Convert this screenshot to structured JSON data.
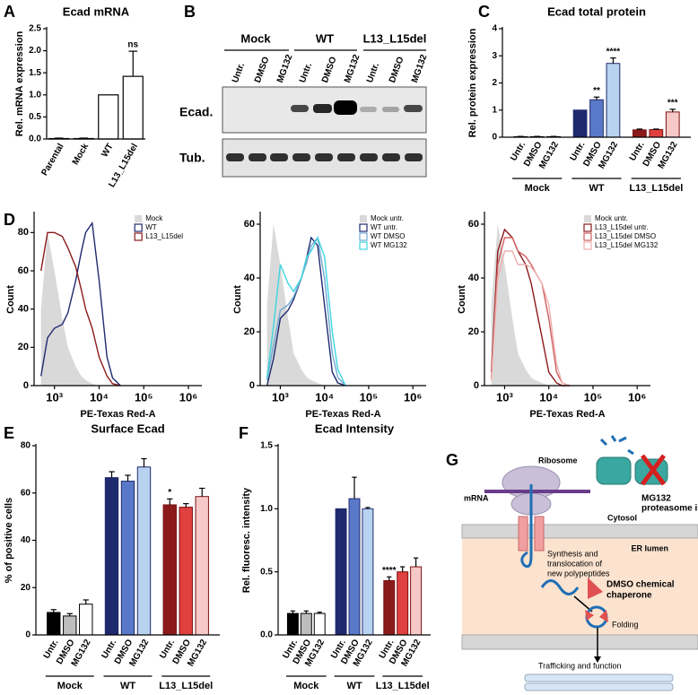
{
  "panel_letters": [
    "A",
    "B",
    "C",
    "D",
    "E",
    "F",
    "G"
  ],
  "chart_data": [
    {
      "type": "bar",
      "title": "Ecad mRNA",
      "ylabel": "Rel. mRNA expression",
      "categories": [
        "Parental",
        "Mock",
        "WT",
        "L13_L15del"
      ],
      "values": [
        0.01,
        0.01,
        1.0,
        1.42
      ],
      "errors": [
        0.01,
        0.01,
        0,
        0.57
      ],
      "significance": [
        null,
        null,
        null,
        "ns"
      ],
      "color": "#ffffff",
      "edgecolor": "#000000",
      "ylim": [
        0,
        2.5
      ],
      "yticks": [
        {
          "value": 0,
          "label": "0.0"
        },
        {
          "value": 0.5,
          "label": "0.5"
        },
        {
          "value": 1,
          "label": "1.0"
        },
        {
          "value": 1.5,
          "label": "1.5"
        },
        {
          "value": 2,
          "label": "2.0"
        },
        {
          "value": 2.5,
          "label": "2.5"
        }
      ]
    },
    {
      "type": "grouped_bar",
      "title": "Ecad total protein",
      "ylabel": "Rel. protein expression",
      "categories": [
        "Untr.",
        "DMSO",
        "MG132"
      ],
      "series": [
        {
          "name": "Mock",
          "colors": [
            "#000000",
            "#bdbdbd",
            "#ffffff"
          ],
          "edgecolor": "#000000",
          "values": [
            0.02,
            0.02,
            0.02
          ],
          "errors": [
            0.01,
            0.01,
            0.01
          ]
        },
        {
          "name": "WT",
          "colors": [
            "#1f2a6e",
            "#5a78c8",
            "#b7d3f0"
          ],
          "edgecolor": "#1f2a6e",
          "values": [
            1.0,
            1.38,
            2.72
          ],
          "errors": [
            0,
            0.1,
            0.2
          ],
          "significance": [
            null,
            "**",
            "****"
          ]
        },
        {
          "name": "L13_L15del",
          "colors": [
            "#8b1a1a",
            "#e04040",
            "#f7c8c8"
          ],
          "edgecolor": "#7a1010",
          "values": [
            0.27,
            0.28,
            0.93
          ],
          "errors": [
            0.03,
            0.02,
            0.1
          ],
          "significance": [
            null,
            null,
            "***"
          ]
        }
      ],
      "ylim": [
        0,
        4
      ],
      "yticks": [
        0,
        1,
        2,
        3,
        4
      ]
    },
    {
      "type": "line",
      "xscale": "log",
      "xlabel": "PE-Texas Red-A",
      "ylabel": "Count",
      "legend": "upper right",
      "x": [
        500,
        700,
        1000,
        1500,
        2000,
        3000,
        4000,
        5000,
        7000,
        10000,
        15000,
        20000,
        30000
      ],
      "series": [
        {
          "name": "Mock",
          "color": "#d9d9d9",
          "filled": true,
          "values": [
            40,
            80,
            60,
            35,
            20,
            10,
            5,
            3,
            1,
            0,
            0,
            0,
            0
          ]
        },
        {
          "name": "WT",
          "color": "#1f2a6e",
          "values": [
            5,
            25,
            30,
            32,
            38,
            55,
            70,
            80,
            85,
            55,
            15,
            4,
            0
          ]
        },
        {
          "name": "L13_L15del",
          "color": "#8b1a1a",
          "values": [
            60,
            80,
            80,
            78,
            72,
            62,
            50,
            40,
            30,
            15,
            5,
            1,
            0
          ]
        }
      ],
      "xlim": [
        350,
        2000000
      ],
      "xticks": [
        {
          "value": 1000,
          "label": "10³"
        },
        {
          "value": 10000,
          "label": "10⁴"
        },
        {
          "value": 100000,
          "label": "10⁵"
        },
        {
          "value": 1000000,
          "label": "10⁶"
        }
      ],
      "ylim": [
        0,
        90
      ],
      "yticks": [
        0,
        20,
        40,
        60,
        80
      ]
    },
    {
      "type": "line",
      "xscale": "log",
      "xlabel": "PE-Texas Red-A",
      "ylabel": "Count",
      "legend": "upper right",
      "x": [
        500,
        700,
        1000,
        1500,
        2000,
        3000,
        4000,
        5000,
        7000,
        10000,
        15000,
        20000,
        30000
      ],
      "series": [
        {
          "name": "Mock untr.",
          "color": "#d9d9d9",
          "filled": true,
          "values": [
            30,
            60,
            45,
            25,
            12,
            6,
            3,
            2,
            1,
            0,
            0,
            0,
            0
          ]
        },
        {
          "name": "WT untr.",
          "color": "#1f2a6e",
          "values": [
            0,
            10,
            25,
            28,
            32,
            40,
            48,
            55,
            52,
            30,
            5,
            1,
            0
          ]
        },
        {
          "name": "WT DMSO",
          "color": "#6fa8d0",
          "values": [
            2,
            15,
            28,
            30,
            33,
            40,
            46,
            52,
            55,
            40,
            12,
            3,
            0
          ]
        },
        {
          "name": "WT MG132",
          "color": "#3fd6e0",
          "values": [
            3,
            22,
            45,
            38,
            35,
            40,
            48,
            50,
            55,
            48,
            20,
            6,
            0
          ]
        }
      ],
      "xlim": [
        350,
        2000000
      ],
      "xticks": [
        {
          "value": 1000,
          "label": "10³"
        },
        {
          "value": 10000,
          "label": "10⁴"
        },
        {
          "value": 100000,
          "label": "10⁵"
        },
        {
          "value": 1000000,
          "label": "10⁶"
        }
      ],
      "ylim": [
        0,
        64
      ],
      "yticks": [
        0,
        20,
        40,
        60
      ]
    },
    {
      "type": "line",
      "xscale": "log",
      "xlabel": "PE-Texas Red-A",
      "ylabel": "Count",
      "legend": "upper right",
      "x": [
        500,
        700,
        1000,
        1500,
        2000,
        3000,
        4000,
        5000,
        7000,
        10000,
        15000,
        20000,
        30000
      ],
      "series": [
        {
          "name": "Mock untr.",
          "color": "#d9d9d9",
          "filled": true,
          "values": [
            30,
            60,
            45,
            25,
            12,
            6,
            3,
            2,
            1,
            0,
            0,
            0,
            0
          ]
        },
        {
          "name": "L13_L15del untr.",
          "color": "#8b1a1a",
          "values": [
            5,
            50,
            58,
            55,
            50,
            45,
            38,
            30,
            18,
            5,
            1,
            0,
            0
          ]
        },
        {
          "name": "L13_L15del DMSO",
          "color": "#d06060",
          "values": [
            3,
            45,
            55,
            55,
            50,
            48,
            45,
            42,
            38,
            25,
            5,
            1,
            0
          ]
        },
        {
          "name": "L13_L15del MG132",
          "color": "#f0b0b0",
          "values": [
            2,
            40,
            50,
            50,
            45,
            45,
            44,
            42,
            38,
            30,
            8,
            1,
            0
          ]
        }
      ],
      "xlim": [
        350,
        2000000
      ],
      "xticks": [
        {
          "value": 1000,
          "label": "10³"
        },
        {
          "value": 10000,
          "label": "10⁴"
        },
        {
          "value": 100000,
          "label": "10⁵"
        },
        {
          "value": 1000000,
          "label": "10⁶"
        }
      ],
      "ylim": [
        0,
        64
      ],
      "yticks": [
        0,
        20,
        40,
        60
      ]
    },
    {
      "type": "grouped_bar",
      "title": "Surface Ecad",
      "ylabel": "% of positive cells",
      "categories": [
        "Untr.",
        "DMSO",
        "MG132"
      ],
      "series": [
        {
          "name": "Mock",
          "colors": [
            "#000000",
            "#bdbdbd",
            "#ffffff"
          ],
          "edgecolor": "#000000",
          "values": [
            9.5,
            8,
            13
          ],
          "errors": [
            1.2,
            1,
            1.8
          ]
        },
        {
          "name": "WT",
          "colors": [
            "#1f2a6e",
            "#5a78c8",
            "#b7d3f0"
          ],
          "edgecolor": "#1f2a6e",
          "values": [
            66.5,
            65,
            71
          ],
          "errors": [
            2.5,
            2.5,
            3.5
          ]
        },
        {
          "name": "L13_L15del",
          "colors": [
            "#8b1a1a",
            "#e04040",
            "#f7c8c8"
          ],
          "edgecolor": "#7a1010",
          "values": [
            55,
            54,
            58.5
          ],
          "errors": [
            2.5,
            1.5,
            3.5
          ],
          "significance": [
            "*",
            null,
            null
          ]
        }
      ],
      "ylim": [
        0,
        80
      ],
      "yticks": [
        0,
        20,
        40,
        60,
        80
      ]
    },
    {
      "type": "grouped_bar",
      "title": "Ecad Intensity",
      "ylabel": "Rel. fluoresc. intensity",
      "categories": [
        "Untr.",
        "DMSO",
        "MG132"
      ],
      "series": [
        {
          "name": "Mock",
          "colors": [
            "#000000",
            "#bdbdbd",
            "#ffffff"
          ],
          "edgecolor": "#000000",
          "values": [
            0.17,
            0.17,
            0.17
          ],
          "errors": [
            0.02,
            0.02,
            0.01
          ]
        },
        {
          "name": "WT",
          "colors": [
            "#1f2a6e",
            "#5a78c8",
            "#b7d3f0"
          ],
          "edgecolor": "#1f2a6e",
          "values": [
            1.0,
            1.08,
            1.0
          ],
          "errors": [
            0,
            0.17,
            0.01
          ]
        },
        {
          "name": "L13_L15del",
          "colors": [
            "#8b1a1a",
            "#e04040",
            "#f7c8c8"
          ],
          "edgecolor": "#7a1010",
          "values": [
            0.43,
            0.5,
            0.54
          ],
          "errors": [
            0.03,
            0.04,
            0.07
          ],
          "significance": [
            "****",
            null,
            null
          ]
        }
      ],
      "ylim": [
        0,
        1.5
      ],
      "yticks": [
        {
          "value": 0,
          "label": "0.0"
        },
        {
          "value": 0.5,
          "label": "0.5"
        },
        {
          "value": 1,
          "label": "1.0"
        },
        {
          "value": 1.5,
          "label": "1.5"
        }
      ]
    }
  ],
  "blot": {
    "groups": [
      "Mock",
      "WT",
      "L13_L15del"
    ],
    "lanes": [
      "Untr.",
      "DMSO",
      "MG132"
    ],
    "rows": [
      "Ecad.",
      "Tub."
    ]
  },
  "diagram": {
    "ribosome": "Ribosome",
    "mrna": "mRNA",
    "cytosol": "Cytosol",
    "er_lumen": "ER lumen",
    "synthesis": [
      "Synthesis and",
      "translocation of",
      "new polypeptides"
    ],
    "chaperone": [
      "DMSO chemical",
      "chaperone"
    ],
    "folding": "Folding",
    "trafficking": "Trafficking and function",
    "inhibitor": [
      "MG132",
      "proteasome inhibitor"
    ]
  }
}
